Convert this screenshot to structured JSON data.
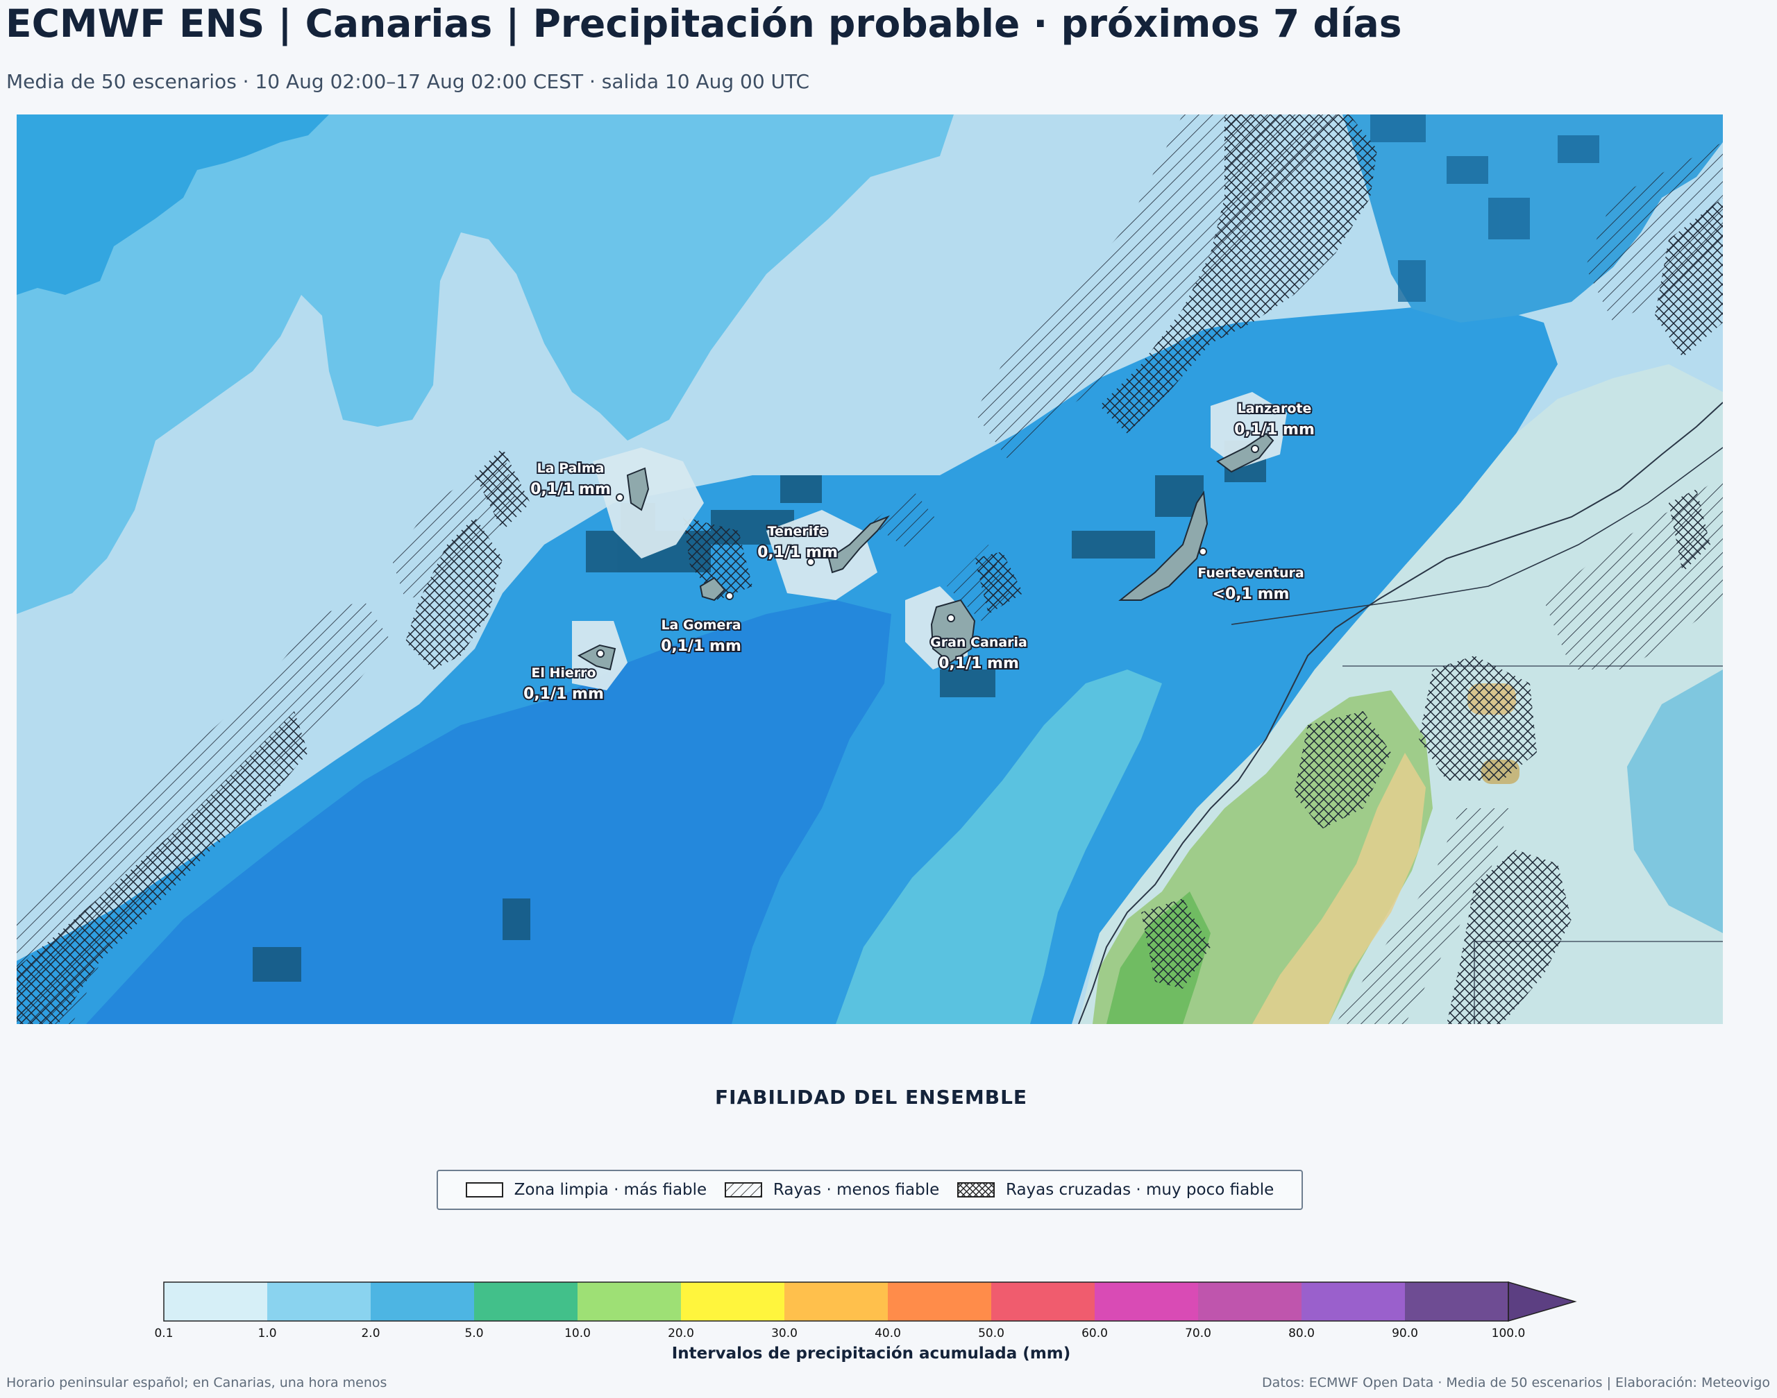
{
  "header": {
    "title": "ECMWF ENS | Canarias | Precipitación probable · próximos 7 días",
    "subtitle": "Media de 50 escenarios · 10 Aug 02:00–17 Aug 02:00 CEST · salida 10 Aug 00 UTC"
  },
  "islands": [
    {
      "name": "La Palma",
      "value": "0,1/1 mm"
    },
    {
      "name": "Tenerife",
      "value": "0,1/1 mm"
    },
    {
      "name": "La Gomera",
      "value": "0,1/1 mm"
    },
    {
      "name": "El Hierro",
      "value": "0,1/1 mm"
    },
    {
      "name": "Gran Canaria",
      "value": "0,1/1 mm"
    },
    {
      "name": "Lanzarote",
      "value": "0,1/1 mm"
    },
    {
      "name": "Fuerteventura",
      "value": "<0,1 mm"
    }
  ],
  "reliability": {
    "title": "FIABILIDAD DEL ENSEMBLE",
    "items": [
      {
        "label": "Zona limpia · más fiable",
        "pattern": "none"
      },
      {
        "label": "Rayas · menos fiable",
        "pattern": "hatch"
      },
      {
        "label": "Rayas cruzadas · muy poco fiable",
        "pattern": "crosshatch"
      }
    ]
  },
  "colorbar": {
    "title": "Intervalos de precipitación acumulada (mm)",
    "ticks": [
      "0.1",
      "1.0",
      "2.0",
      "5.0",
      "10.0",
      "20.0",
      "30.0",
      "40.0",
      "50.0",
      "60.0",
      "70.0",
      "80.0",
      "90.0",
      "100.0"
    ],
    "colors": [
      "#d6eff7",
      "#8ad3ef",
      "#4db5e3",
      "#42c08a",
      "#9ee075",
      "#fff53d",
      "#ffc04c",
      "#ff8c4a",
      "#f05c6e",
      "#d94bb5",
      "#bf55ad",
      "#9a60cc",
      "#6e4c93"
    ],
    "extend_color": "#5c3f82"
  },
  "footer": {
    "left": "Horario peninsular español; en Canarias, una hora menos",
    "right": "Datos: ECMWF Open Data · Media de 50 escenarios | Elaboración: Meteovigo"
  }
}
